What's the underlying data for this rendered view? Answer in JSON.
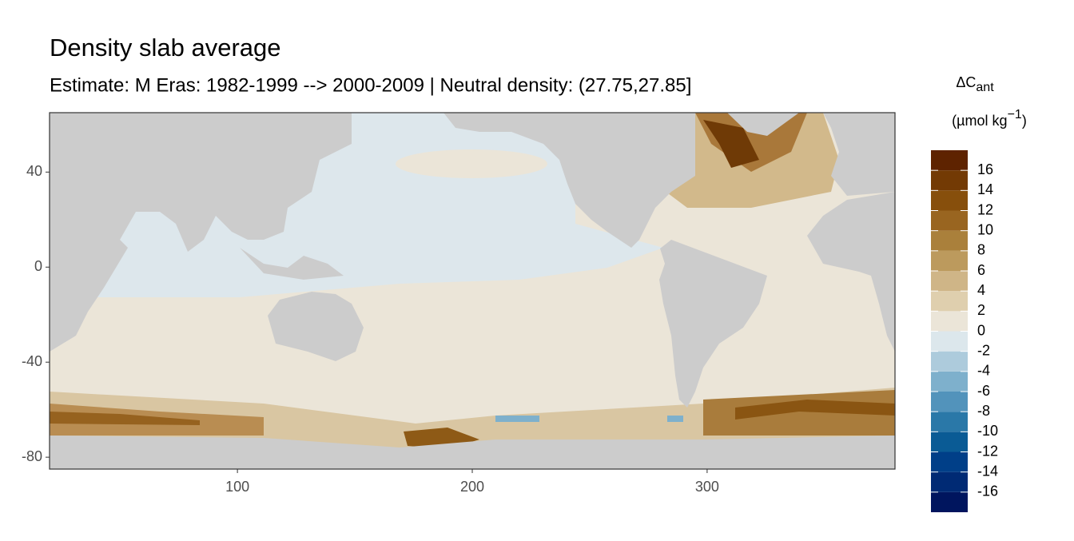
{
  "chart_data": {
    "type": "map",
    "title": "Density slab average",
    "subtitle": "Estimate: M Eras: 1982-1999 --> 2000-2009 | Neutral density: (27.75,27.85]",
    "xlim": [
      20,
      380
    ],
    "ylim": [
      -85,
      65
    ],
    "xticks": [
      100,
      200,
      300
    ],
    "yticks": [
      40,
      0,
      -40,
      -80
    ],
    "legend": {
      "title": "ΔC",
      "title_sub": "ant",
      "unit": "(µmol kg",
      "unit_exp": "−1",
      "unit_close": ")",
      "limits": [
        -18,
        18
      ],
      "breaks": [
        -16,
        -14,
        -12,
        -10,
        -8,
        -6,
        -4,
        -2,
        0,
        2,
        4,
        6,
        8,
        10,
        12,
        14,
        16
      ],
      "colors": [
        "#00155e",
        "#002a74",
        "#003f88",
        "#0a5b95",
        "#2a78a8",
        "#5293bb",
        "#7eb0cc",
        "#adcbdc",
        "#dce7ec",
        "#ebe5d8",
        "#dfcfae",
        "#cfb587",
        "#bc9a5d",
        "#aa803b",
        "#996520",
        "#874f0c",
        "#733a04",
        "#5e2300"
      ]
    }
  }
}
